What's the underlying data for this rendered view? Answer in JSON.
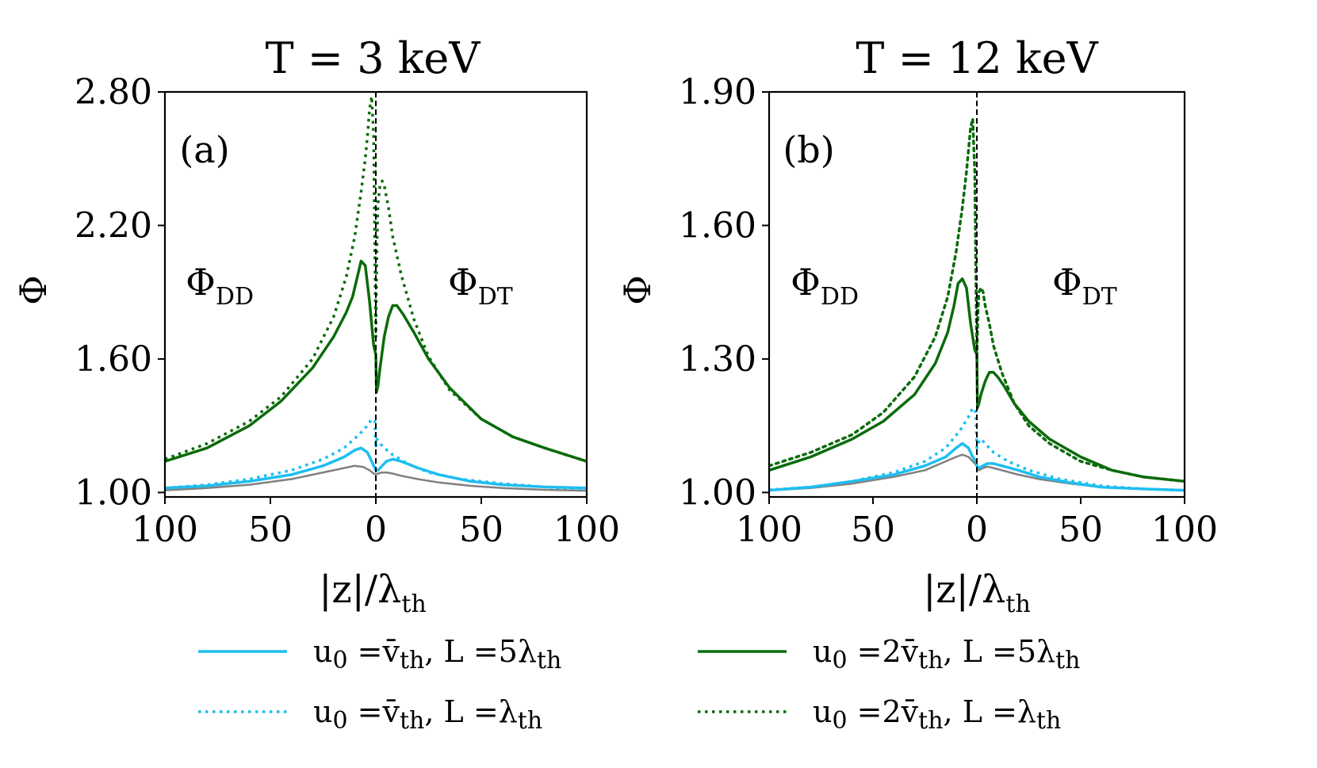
{
  "figure": {
    "background": "#ffffff"
  },
  "legend": {
    "entries": [
      {
        "parts": [
          "u",
          "0",
          " =v̄",
          "th",
          ", L =5λ",
          "th"
        ],
        "color": "#1ebef0",
        "dash": "solid",
        "width": 3.5
      },
      {
        "parts": [
          "u",
          "0",
          " =v̄",
          "th",
          ", L =λ",
          "th"
        ],
        "color": "#1ebef0",
        "dash": "dotted",
        "width": 3.5
      },
      {
        "parts": [
          "u",
          "0",
          " =2v̄",
          "th",
          ", L =5λ",
          "th"
        ],
        "color": "#0b6b0b",
        "dash": "solid",
        "width": 3.5
      },
      {
        "parts": [
          "u",
          "0",
          " =2v̄",
          "th",
          ", L =λ",
          "th"
        ],
        "color": "#0b6b0b",
        "dash": "dotted",
        "width": 3.5
      }
    ]
  },
  "chart_data": [
    {
      "type": "line",
      "panel_label": "(a)",
      "title": "T = 3 keV",
      "xlabel": "|z|/λ",
      "xlabel_sub": "th",
      "ylabel": "Φ",
      "x_ticks": [
        "100",
        "50",
        "0",
        "50",
        "100"
      ],
      "y_ticks": [
        "1.00",
        "1.60",
        "2.20",
        "2.80"
      ],
      "y_tick_values": [
        1.0,
        1.6,
        2.2,
        2.8
      ],
      "xlim": [
        -100,
        100
      ],
      "ylim": [
        0.98,
        2.8
      ],
      "divider_x": 0,
      "region_labels": {
        "left": "Φ",
        "left_sub": "DD",
        "right": "Φ",
        "right_sub": "DT"
      },
      "series": [
        {
          "name": "baseline",
          "color": "#808080",
          "dash": "solid",
          "width": 2.5,
          "x": [
            -100,
            -80,
            -60,
            -40,
            -25,
            -15,
            -10,
            -6,
            -3,
            -1,
            0,
            1,
            3,
            5,
            8,
            12,
            20,
            30,
            45,
            60,
            80,
            100
          ],
          "y": [
            1.01,
            1.02,
            1.035,
            1.06,
            1.09,
            1.11,
            1.12,
            1.115,
            1.1,
            1.085,
            1.08,
            1.085,
            1.09,
            1.09,
            1.085,
            1.075,
            1.06,
            1.045,
            1.03,
            1.02,
            1.012,
            1.008
          ]
        },
        {
          "name": "u0=v̄th, L=5λth",
          "color": "#1ebef0",
          "dash": "solid",
          "width": 3.5,
          "x": [
            -100,
            -80,
            -60,
            -40,
            -25,
            -15,
            -10,
            -7,
            -4,
            -2,
            -0.5,
            0,
            1,
            3,
            5,
            8,
            12,
            20,
            30,
            45,
            60,
            80,
            100
          ],
          "y": [
            1.02,
            1.03,
            1.05,
            1.08,
            1.12,
            1.16,
            1.19,
            1.2,
            1.18,
            1.14,
            1.11,
            1.1,
            1.1,
            1.12,
            1.14,
            1.15,
            1.14,
            1.11,
            1.08,
            1.05,
            1.035,
            1.025,
            1.02
          ]
        },
        {
          "name": "u0=v̄th, L=λth",
          "color": "#1ebef0",
          "dash": "dotted",
          "width": 3.5,
          "x": [
            -100,
            -80,
            -60,
            -40,
            -25,
            -15,
            -8,
            -4,
            -2,
            -0.5,
            0,
            0.5,
            2,
            4,
            8,
            15,
            25,
            40,
            60,
            80,
            100
          ],
          "y": [
            1.02,
            1.035,
            1.06,
            1.1,
            1.15,
            1.2,
            1.26,
            1.3,
            1.33,
            1.32,
            1.2,
            1.24,
            1.22,
            1.2,
            1.17,
            1.13,
            1.09,
            1.06,
            1.04,
            1.025,
            1.015
          ]
        },
        {
          "name": "u0=2v̄th, L=5λth",
          "color": "#0b6b0b",
          "dash": "solid",
          "width": 3.5,
          "x": [
            -100,
            -80,
            -60,
            -45,
            -30,
            -20,
            -14,
            -11,
            -9,
            -7,
            -5,
            -3,
            -1,
            0,
            0.3,
            1,
            2,
            4,
            6,
            8,
            10,
            13,
            18,
            25,
            35,
            50,
            65,
            80,
            100
          ],
          "y": [
            1.14,
            1.2,
            1.3,
            1.41,
            1.56,
            1.7,
            1.81,
            1.88,
            1.96,
            2.04,
            2.02,
            1.86,
            1.66,
            1.62,
            1.45,
            1.48,
            1.56,
            1.7,
            1.79,
            1.84,
            1.84,
            1.8,
            1.72,
            1.6,
            1.47,
            1.33,
            1.25,
            1.2,
            1.14
          ]
        },
        {
          "name": "u0=2v̄th, L=λth",
          "color": "#0b6b0b",
          "dash": "dotted",
          "width": 3.5,
          "x": [
            -100,
            -80,
            -60,
            -45,
            -30,
            -20,
            -14,
            -10,
            -7,
            -5,
            -4,
            -3,
            -2,
            -1,
            -0.5,
            0,
            0.5,
            1,
            2,
            3,
            4,
            6,
            8,
            12,
            18,
            25,
            35,
            50,
            65,
            80,
            100
          ],
          "y": [
            1.15,
            1.22,
            1.32,
            1.43,
            1.6,
            1.79,
            1.97,
            2.15,
            2.35,
            2.5,
            2.6,
            2.72,
            2.78,
            2.6,
            2.1,
            1.7,
            2.1,
            2.3,
            2.38,
            2.4,
            2.38,
            2.28,
            2.15,
            1.98,
            1.78,
            1.61,
            1.46,
            1.33,
            1.25,
            1.2,
            1.14
          ]
        }
      ]
    },
    {
      "type": "line",
      "panel_label": "(b)",
      "title": "T = 12 keV",
      "xlabel": "|z|/λ",
      "xlabel_sub": "th",
      "ylabel": "Φ",
      "x_ticks": [
        "100",
        "50",
        "0",
        "50",
        "100"
      ],
      "y_ticks": [
        "1.00",
        "1.30",
        "1.60",
        "1.90"
      ],
      "y_tick_values": [
        1.0,
        1.3,
        1.6,
        1.9
      ],
      "xlim": [
        -100,
        100
      ],
      "ylim": [
        0.99,
        1.9
      ],
      "divider_x": 0,
      "region_labels": {
        "left": "Φ",
        "left_sub": "DD",
        "right": "Φ",
        "right_sub": "DT"
      },
      "series": [
        {
          "name": "baseline",
          "color": "#808080",
          "dash": "solid",
          "width": 2.5,
          "x": [
            -100,
            -80,
            -60,
            -40,
            -25,
            -15,
            -10,
            -7,
            -4,
            -1,
            0,
            1,
            3,
            5,
            8,
            12,
            20,
            30,
            45,
            60,
            80,
            100
          ],
          "y": [
            1.005,
            1.01,
            1.02,
            1.035,
            1.05,
            1.07,
            1.08,
            1.085,
            1.08,
            1.065,
            1.06,
            1.05,
            1.055,
            1.058,
            1.055,
            1.05,
            1.04,
            1.03,
            1.02,
            1.012,
            1.008,
            1.005
          ]
        },
        {
          "name": "u0=v̄th, L=5λth",
          "color": "#1ebef0",
          "dash": "solid",
          "width": 3.5,
          "x": [
            -100,
            -80,
            -60,
            -40,
            -25,
            -15,
            -10,
            -7,
            -4,
            -2,
            -0.5,
            0,
            1,
            3,
            5,
            8,
            12,
            20,
            30,
            45,
            60,
            80,
            100
          ],
          "y": [
            1.005,
            1.012,
            1.025,
            1.04,
            1.06,
            1.08,
            1.1,
            1.11,
            1.1,
            1.08,
            1.07,
            1.06,
            1.055,
            1.06,
            1.065,
            1.065,
            1.06,
            1.05,
            1.035,
            1.022,
            1.012,
            1.008,
            1.005
          ]
        },
        {
          "name": "u0=v̄th, L=λth",
          "color": "#1ebef0",
          "dash": "dotted",
          "width": 3.5,
          "x": [
            -100,
            -80,
            -60,
            -40,
            -25,
            -15,
            -8,
            -4,
            -2,
            -0.5,
            0,
            0.5,
            2,
            4,
            8,
            15,
            25,
            40,
            60,
            80,
            100
          ],
          "y": [
            1.006,
            1.012,
            1.025,
            1.045,
            1.07,
            1.1,
            1.14,
            1.17,
            1.19,
            1.18,
            1.1,
            1.11,
            1.12,
            1.11,
            1.09,
            1.07,
            1.05,
            1.03,
            1.015,
            1.008,
            1.005
          ]
        },
        {
          "name": "u0=2v̄th, L=5λth",
          "color": "#0b6b0b",
          "dash": "solid",
          "width": 3.5,
          "x": [
            -100,
            -80,
            -60,
            -45,
            -30,
            -20,
            -14,
            -11,
            -9,
            -7,
            -5,
            -3,
            -1,
            0,
            0.3,
            1,
            2,
            4,
            6,
            8,
            10,
            13,
            18,
            25,
            35,
            50,
            65,
            80,
            100
          ],
          "y": [
            1.05,
            1.08,
            1.12,
            1.16,
            1.22,
            1.29,
            1.36,
            1.42,
            1.47,
            1.48,
            1.46,
            1.38,
            1.32,
            1.31,
            1.19,
            1.2,
            1.22,
            1.25,
            1.27,
            1.27,
            1.26,
            1.24,
            1.2,
            1.16,
            1.12,
            1.08,
            1.05,
            1.035,
            1.025
          ]
        },
        {
          "name": "u0=2v̄th, L=λth",
          "color": "#0b6b0b",
          "dash": "solid-dotted",
          "width": 3.5,
          "x": [
            -100,
            -80,
            -60,
            -45,
            -30,
            -20,
            -14,
            -10,
            -7,
            -5,
            -4,
            -3,
            -2,
            -1,
            -0.5,
            0,
            0.5,
            1,
            2,
            3,
            4,
            6,
            8,
            12,
            18,
            25,
            35,
            50,
            65,
            80,
            100
          ],
          "y": [
            1.06,
            1.09,
            1.13,
            1.18,
            1.26,
            1.35,
            1.44,
            1.54,
            1.64,
            1.72,
            1.77,
            1.82,
            1.84,
            1.72,
            1.5,
            1.3,
            1.4,
            1.45,
            1.46,
            1.45,
            1.42,
            1.38,
            1.33,
            1.27,
            1.2,
            1.15,
            1.11,
            1.07,
            1.05,
            1.035,
            1.025
          ]
        }
      ]
    }
  ]
}
